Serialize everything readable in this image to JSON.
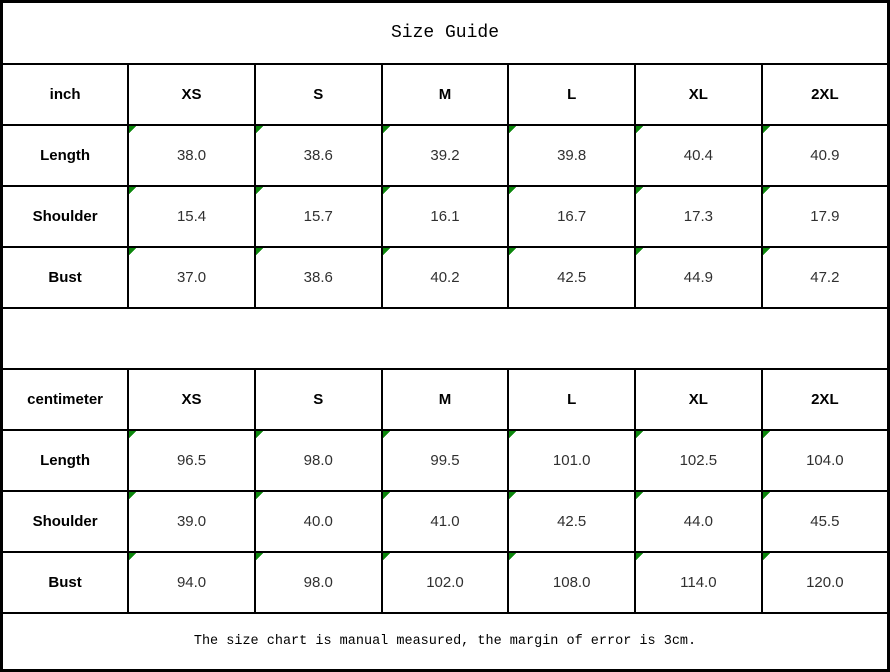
{
  "title": "Size Guide",
  "columns": [
    "XS",
    "S",
    "M",
    "L",
    "XL",
    "2XL"
  ],
  "tables": [
    {
      "unit": "inch",
      "rows": [
        {
          "label": "Length",
          "values": [
            "38.0",
            "38.6",
            "39.2",
            "39.8",
            "40.4",
            "40.9"
          ]
        },
        {
          "label": "Shoulder",
          "values": [
            "15.4",
            "15.7",
            "16.1",
            "16.7",
            "17.3",
            "17.9"
          ]
        },
        {
          "label": "Bust",
          "values": [
            "37.0",
            "38.6",
            "40.2",
            "42.5",
            "44.9",
            "47.2"
          ]
        }
      ]
    },
    {
      "unit": "centimeter",
      "rows": [
        {
          "label": "Length",
          "values": [
            "96.5",
            "98.0",
            "99.5",
            "101.0",
            "102.5",
            "104.0"
          ]
        },
        {
          "label": "Shoulder",
          "values": [
            "39.0",
            "40.0",
            "41.0",
            "42.5",
            "44.0",
            "45.5"
          ]
        },
        {
          "label": "Bust",
          "values": [
            "94.0",
            "98.0",
            "102.0",
            "108.0",
            "114.0",
            "120.0"
          ]
        }
      ]
    }
  ],
  "footer": {
    "note": "The size chart is manual measured, the margin of error is 3cm."
  },
  "icons": {
    "cell_marker": "green-corner-triangle"
  },
  "colors": {
    "border": "#000000",
    "marker_green": "#0c870c",
    "text": "#303030"
  }
}
